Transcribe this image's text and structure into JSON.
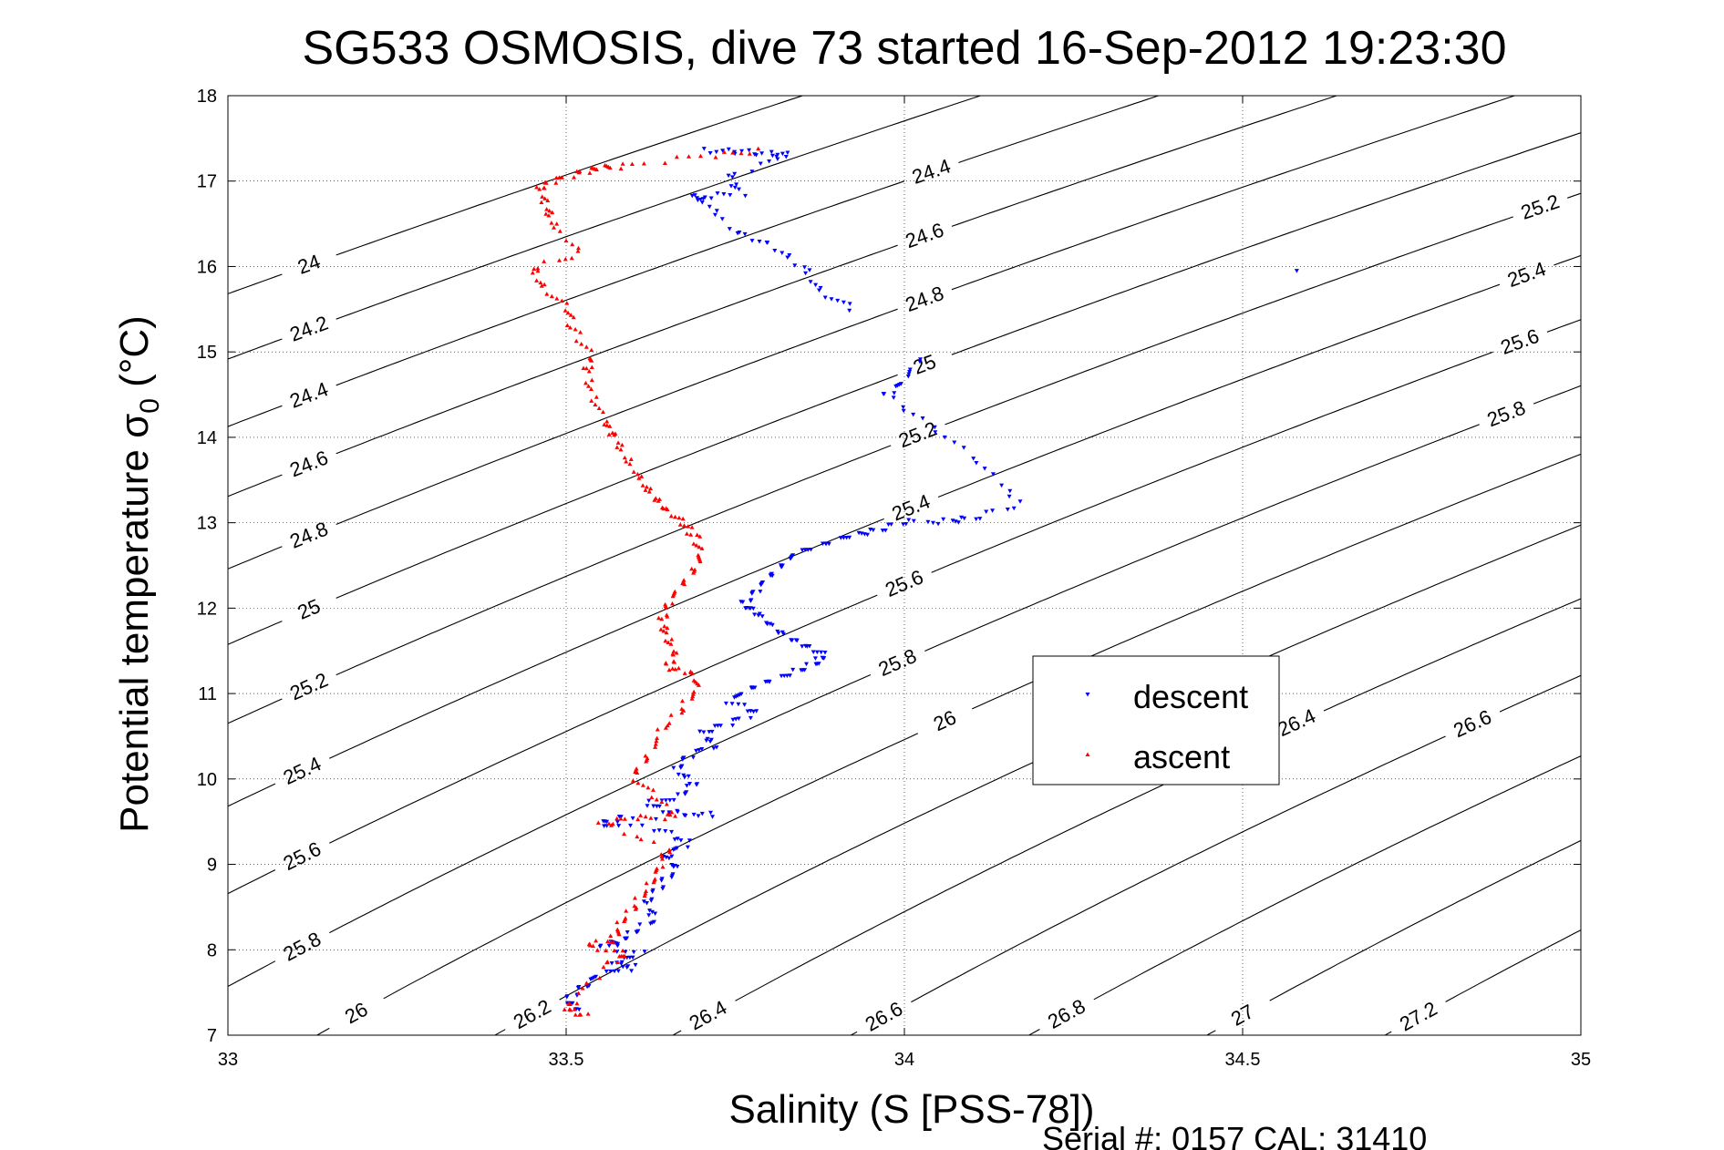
{
  "chart_data": {
    "type": "scatter",
    "title": "SG533 OSMOSIS, dive 73 started 16-Sep-2012 19:23:30",
    "xlabel": "Salinity (S [PSS-78])",
    "ylabel": "Potential temperature σ",
    "ylabel_subscript": "0",
    "ylabel_unit": " (°C)",
    "xlim": [
      33,
      35
    ],
    "ylim": [
      7,
      18
    ],
    "grid": true,
    "legend_position": "center-right",
    "x_tick_labels": [
      "33",
      "33.5",
      "34",
      "34.5",
      "35"
    ],
    "y_tick_labels": [
      "7",
      "8",
      "9",
      "10",
      "11",
      "12",
      "13",
      "14",
      "15",
      "16",
      "17",
      "18"
    ],
    "x_ticks": [
      33,
      33.5,
      34,
      34.5,
      35
    ],
    "y_ticks": [
      7,
      8,
      9,
      10,
      11,
      12,
      13,
      14,
      15,
      16,
      17,
      18
    ],
    "density_contour_levels": [
      "24",
      "24.2",
      "24.4",
      "24.6",
      "24.8",
      "25",
      "25.2",
      "25.4",
      "25.6",
      "25.8",
      "26",
      "26.2",
      "26.4",
      "26.6",
      "26.8",
      "27",
      "27.2"
    ],
    "series": [
      {
        "name": "descent",
        "color": "#0000ff",
        "marker": "triangle-down",
        "points": [
          [
            33.71,
            17.35
          ],
          [
            33.75,
            17.35
          ],
          [
            33.8,
            17.32
          ],
          [
            33.83,
            17.3
          ],
          [
            33.74,
            17.05
          ],
          [
            33.76,
            16.85
          ],
          [
            33.69,
            16.82
          ],
          [
            33.7,
            16.78
          ],
          [
            33.75,
            16.4
          ],
          [
            33.8,
            16.25
          ],
          [
            33.85,
            16.0
          ],
          [
            33.88,
            15.7
          ],
          [
            33.92,
            15.5
          ],
          [
            34.02,
            14.9
          ],
          [
            34.0,
            14.65
          ],
          [
            33.97,
            14.5
          ],
          [
            34.04,
            14.15
          ],
          [
            34.11,
            13.7
          ],
          [
            34.17,
            13.22
          ],
          [
            34.1,
            13.05
          ],
          [
            34.06,
            13.02
          ],
          [
            34.0,
            13.0
          ],
          [
            33.96,
            12.9
          ],
          [
            33.92,
            12.85
          ],
          [
            33.88,
            12.75
          ],
          [
            33.84,
            12.65
          ],
          [
            33.82,
            12.5
          ],
          [
            33.8,
            12.35
          ],
          [
            33.78,
            12.2
          ],
          [
            33.76,
            12.05
          ],
          [
            33.78,
            11.95
          ],
          [
            33.8,
            11.8
          ],
          [
            33.83,
            11.65
          ],
          [
            33.86,
            11.55
          ],
          [
            33.88,
            11.45
          ],
          [
            33.87,
            11.35
          ],
          [
            33.84,
            11.25
          ],
          [
            33.8,
            11.15
          ],
          [
            33.77,
            11.05
          ],
          [
            33.74,
            10.9
          ],
          [
            33.78,
            10.78
          ],
          [
            33.74,
            10.65
          ],
          [
            33.7,
            10.55
          ],
          [
            33.72,
            10.4
          ],
          [
            33.68,
            10.25
          ],
          [
            33.66,
            10.1
          ],
          [
            33.69,
            9.95
          ],
          [
            33.67,
            9.8
          ],
          [
            33.62,
            9.7
          ],
          [
            33.66,
            9.6
          ],
          [
            33.72,
            9.58
          ],
          [
            33.58,
            9.55
          ],
          [
            33.55,
            9.48
          ],
          [
            33.64,
            9.4
          ],
          [
            33.68,
            9.25
          ],
          [
            33.65,
            9.1
          ],
          [
            33.66,
            8.95
          ],
          [
            33.64,
            8.75
          ],
          [
            33.62,
            8.55
          ],
          [
            33.63,
            8.35
          ],
          [
            33.6,
            8.2
          ],
          [
            33.58,
            8.1
          ],
          [
            33.55,
            8.05
          ],
          [
            33.61,
            7.95
          ],
          [
            33.57,
            7.85
          ],
          [
            33.6,
            7.8
          ],
          [
            33.55,
            7.7
          ],
          [
            33.52,
            7.55
          ],
          [
            33.5,
            7.4
          ],
          [
            33.52,
            7.3
          ],
          [
            34.58,
            15.98
          ]
        ]
      },
      {
        "name": "ascent",
        "color": "#ff0000",
        "marker": "triangle-up",
        "points": [
          [
            33.79,
            17.35
          ],
          [
            33.7,
            17.3
          ],
          [
            33.58,
            17.18
          ],
          [
            33.55,
            17.15
          ],
          [
            33.52,
            17.1
          ],
          [
            33.48,
            17.0
          ],
          [
            33.46,
            16.92
          ],
          [
            33.47,
            16.7
          ],
          [
            33.48,
            16.5
          ],
          [
            33.52,
            16.15
          ],
          [
            33.45,
            15.98
          ],
          [
            33.47,
            15.75
          ],
          [
            33.5,
            15.5
          ],
          [
            33.51,
            15.25
          ],
          [
            33.54,
            14.95
          ],
          [
            33.53,
            14.8
          ],
          [
            33.54,
            14.5
          ],
          [
            33.56,
            14.15
          ],
          [
            33.57,
            14.0
          ],
          [
            33.59,
            13.75
          ],
          [
            33.61,
            13.5
          ],
          [
            33.63,
            13.3
          ],
          [
            33.65,
            13.15
          ],
          [
            33.67,
            13.0
          ],
          [
            33.69,
            12.85
          ],
          [
            33.7,
            12.65
          ],
          [
            33.69,
            12.45
          ],
          [
            33.67,
            12.25
          ],
          [
            33.65,
            12.05
          ],
          [
            33.64,
            11.85
          ],
          [
            33.65,
            11.65
          ],
          [
            33.66,
            11.45
          ],
          [
            33.65,
            11.3
          ],
          [
            33.69,
            11.25
          ],
          [
            33.69,
            11.05
          ],
          [
            33.67,
            10.8
          ],
          [
            33.64,
            10.55
          ],
          [
            33.62,
            10.25
          ],
          [
            33.6,
            10.05
          ],
          [
            33.63,
            9.8
          ],
          [
            33.66,
            9.55
          ],
          [
            33.6,
            9.55
          ],
          [
            33.55,
            9.48
          ],
          [
            33.65,
            9.2
          ],
          [
            33.64,
            8.95
          ],
          [
            33.62,
            8.75
          ],
          [
            33.6,
            8.5
          ],
          [
            33.58,
            8.3
          ],
          [
            33.57,
            8.1
          ],
          [
            33.53,
            8.05
          ],
          [
            33.59,
            7.95
          ],
          [
            33.56,
            7.85
          ],
          [
            33.51,
            7.4
          ],
          [
            33.5,
            7.3
          ],
          [
            33.53,
            7.22
          ]
        ]
      }
    ]
  },
  "footer": {
    "serial_text": "Serial #: 0157  CAL: 31410"
  }
}
